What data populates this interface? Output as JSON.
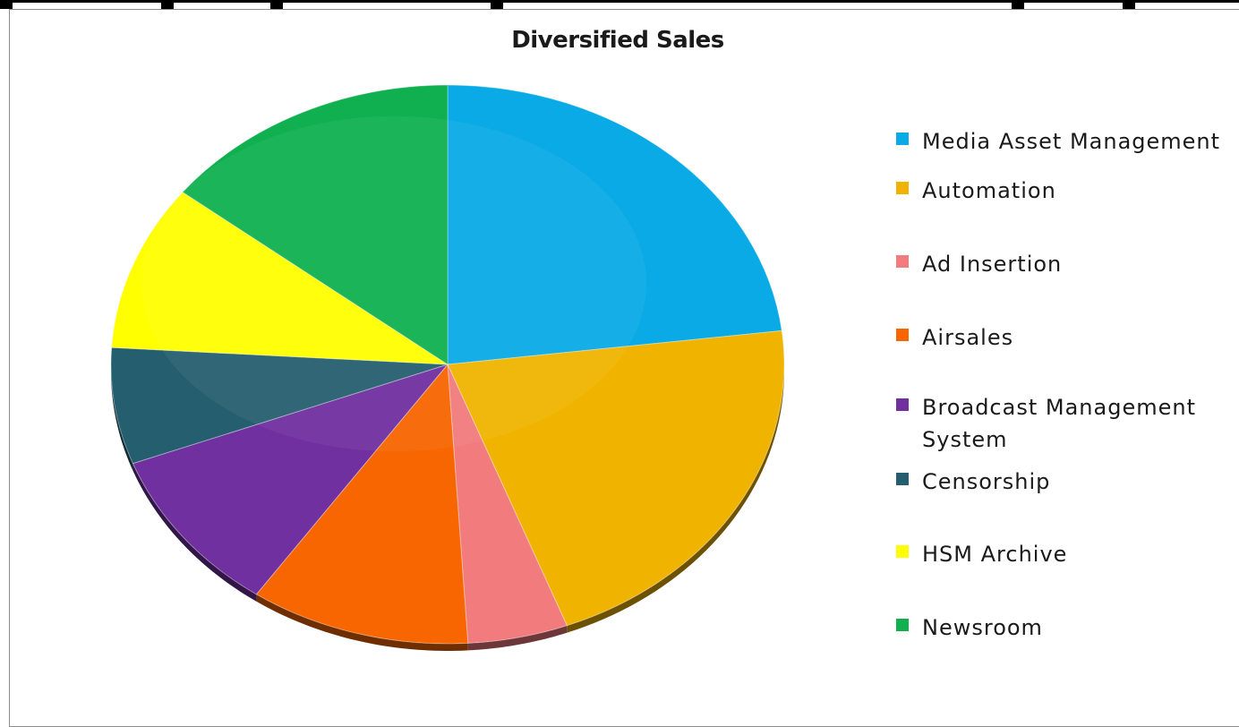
{
  "chart_data": {
    "type": "pie",
    "title": "Diversified Sales",
    "categories": [
      "Media Asset Management",
      "Automation",
      "Ad Insertion",
      "Airsales",
      "Broadcast Management System",
      "Censorship",
      "HSM Archive",
      "Newsroom"
    ],
    "values": [
      24,
      22,
      5,
      11,
      10,
      7,
      10,
      15
    ],
    "colors": [
      "#0aaae6",
      "#f0b400",
      "#f27b7e",
      "#f76600",
      "#7030a0",
      "#255e6e",
      "#ffff00",
      "#10b050"
    ],
    "legend": "right",
    "legend_items": [
      {
        "label": "Media Asset Management",
        "color": "#0aaae6"
      },
      {
        "label": "Automation",
        "color": "#f0b400"
      },
      {
        "label": "Ad Insertion",
        "color": "#f27b7e"
      },
      {
        "label": "Airsales",
        "color": "#f76600"
      },
      {
        "label": "Broadcast Management System",
        "color": "#7030a0"
      },
      {
        "label": "Censorship",
        "color": "#255e6e"
      },
      {
        "label": "HSM Archive",
        "color": "#ffff00"
      },
      {
        "label": "Newsroom",
        "color": "#10b050"
      }
    ]
  }
}
